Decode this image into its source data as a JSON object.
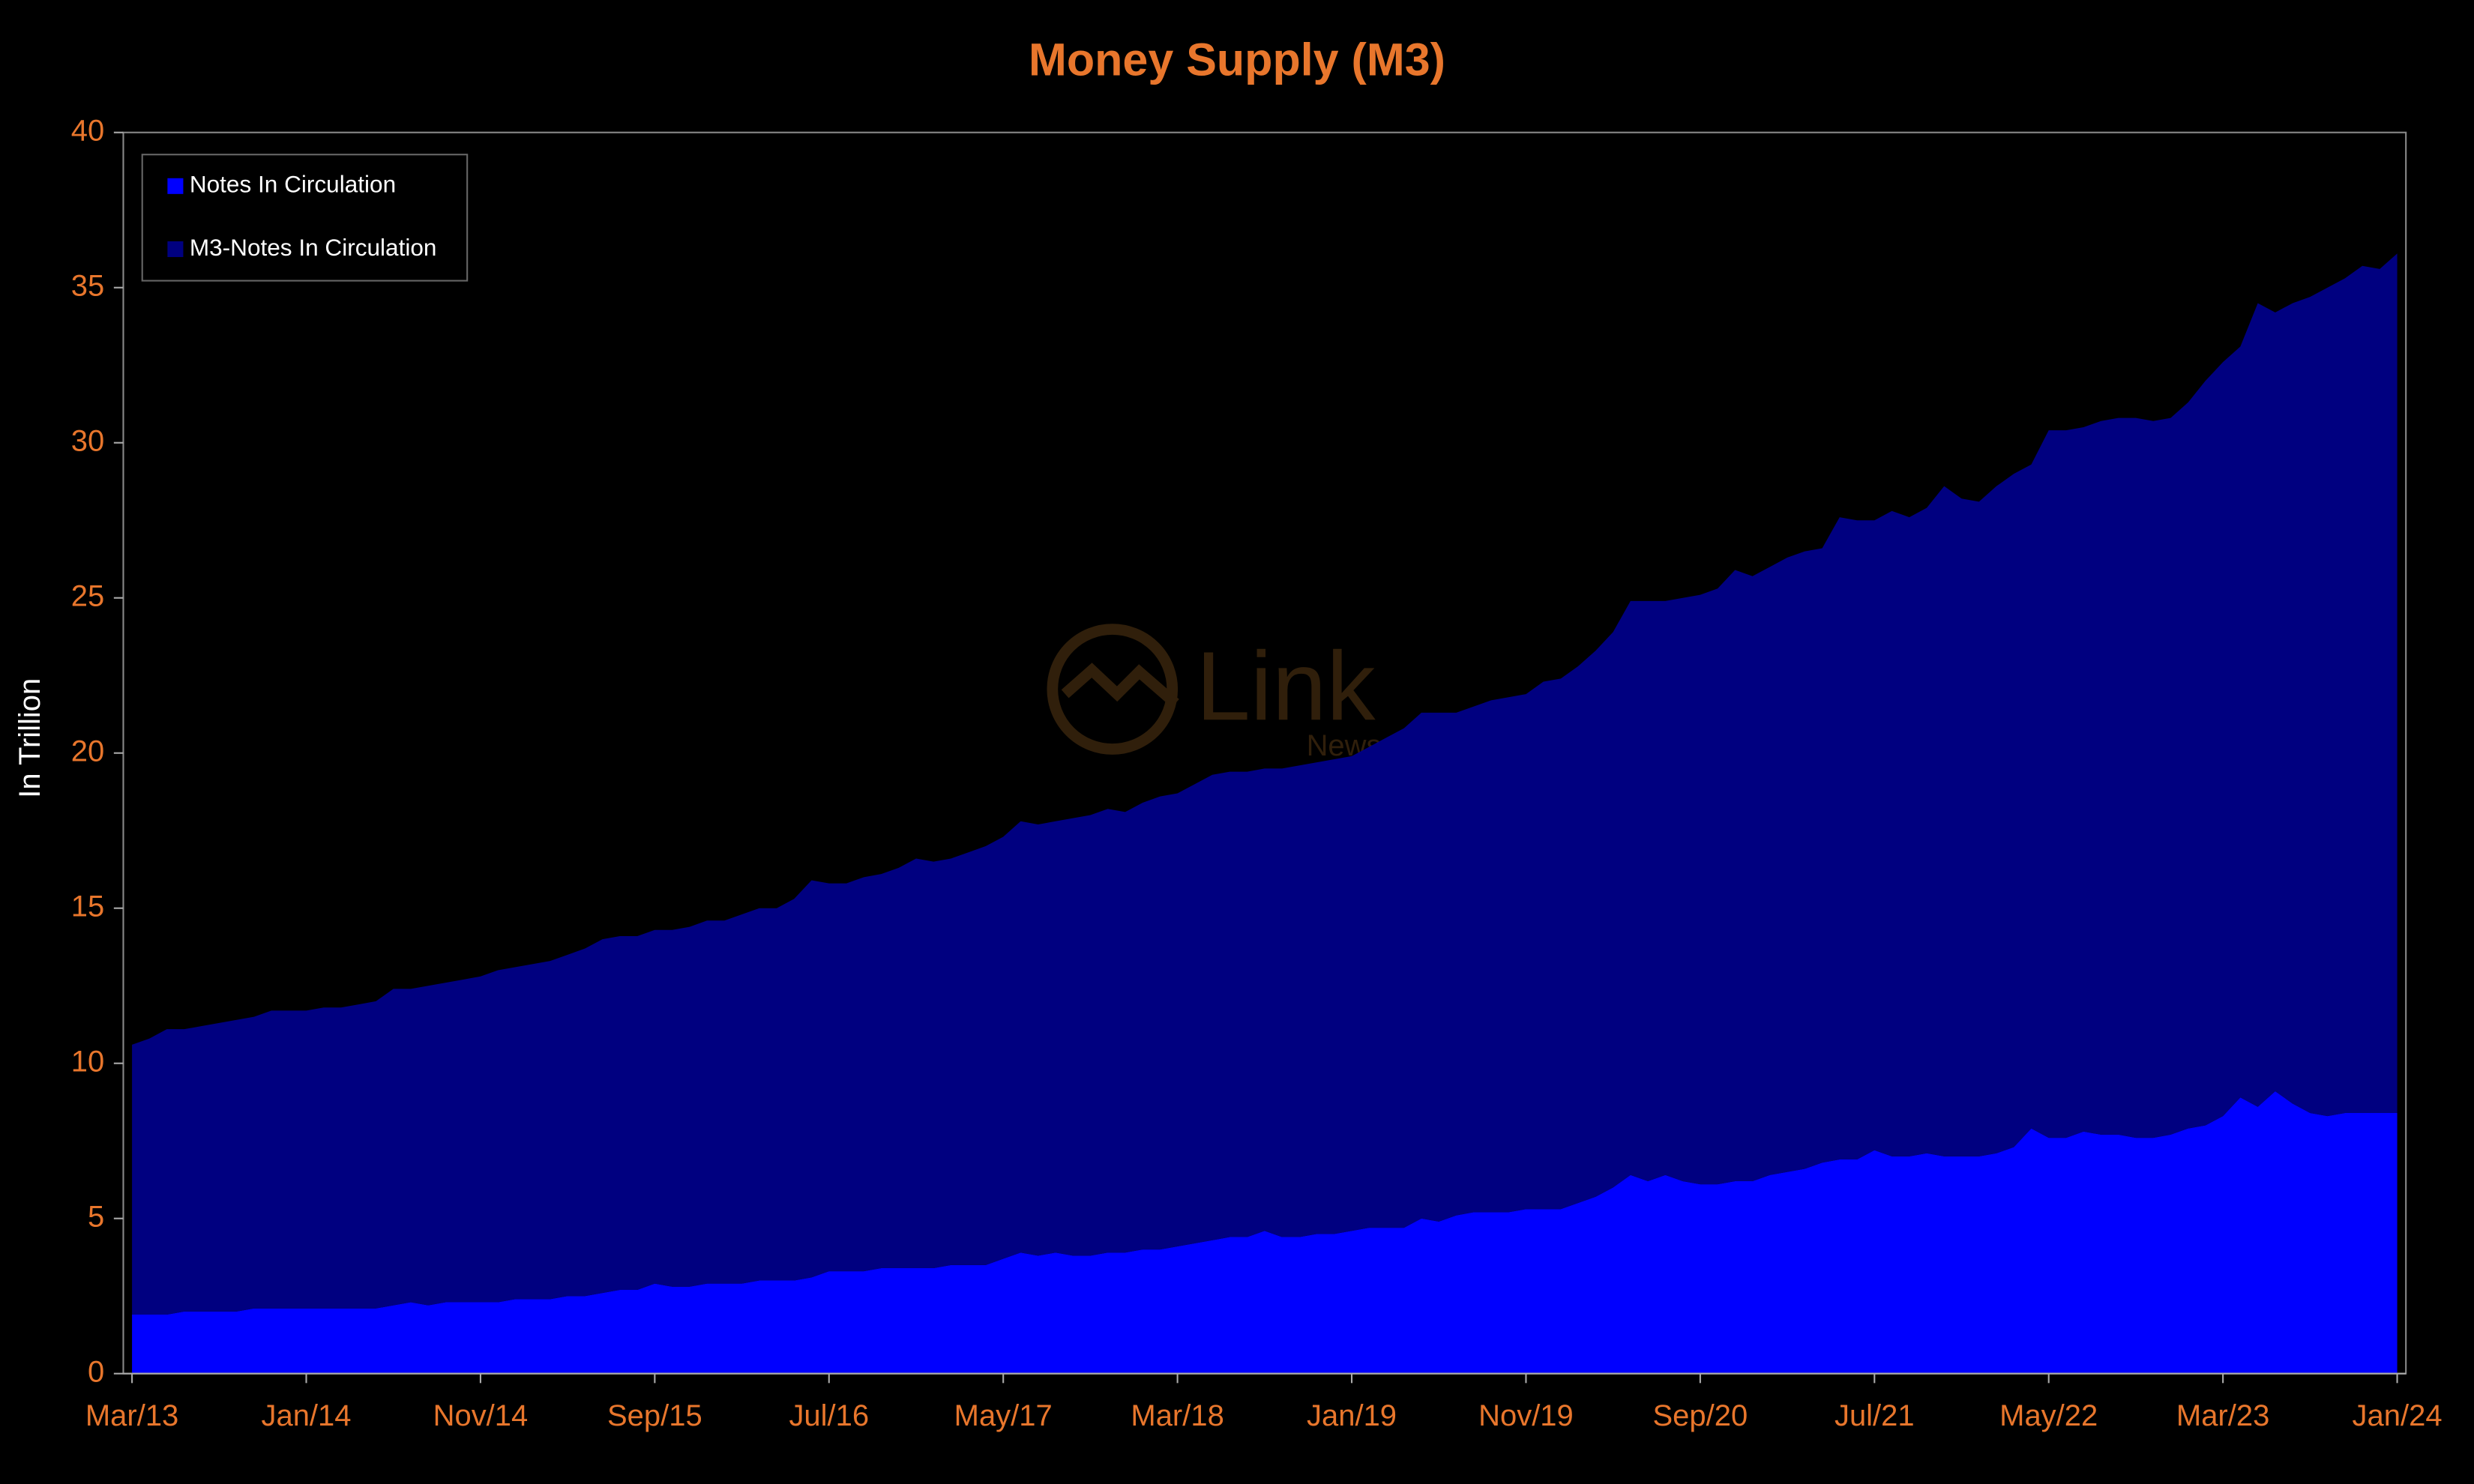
{
  "chart_data": {
    "type": "stacked-area",
    "title": "Money Supply (M3)",
    "y_label": "In Trillion",
    "categories": [
      "Mar/13",
      null,
      null,
      null,
      null,
      null,
      null,
      null,
      null,
      null,
      "Jan/14",
      null,
      null,
      null,
      null,
      null,
      null,
      null,
      null,
      null,
      "Nov/14",
      null,
      null,
      null,
      null,
      null,
      null,
      null,
      null,
      null,
      "Sep/15",
      null,
      null,
      null,
      null,
      null,
      null,
      null,
      null,
      null,
      "Jul/16",
      null,
      null,
      null,
      null,
      null,
      null,
      null,
      null,
      null,
      "May/17",
      null,
      null,
      null,
      null,
      null,
      null,
      null,
      null,
      null,
      "Mar/18",
      null,
      null,
      null,
      null,
      null,
      null,
      null,
      null,
      null,
      "Jan/19",
      null,
      null,
      null,
      null,
      null,
      null,
      null,
      null,
      null,
      "Nov/19",
      null,
      null,
      null,
      null,
      null,
      null,
      null,
      null,
      null,
      "Sep/20",
      null,
      null,
      null,
      null,
      null,
      null,
      null,
      null,
      null,
      "Jul/21",
      null,
      null,
      null,
      null,
      null,
      null,
      null,
      null,
      null,
      "May/22",
      null,
      null,
      null,
      null,
      null,
      null,
      null,
      null,
      null,
      "Mar/23",
      null,
      null,
      null,
      null,
      null,
      null,
      null,
      null,
      null,
      "Jan/24"
    ],
    "series": [
      {
        "name": "Notes In Circulation",
        "color": "#0000ff",
        "values": [
          1.9,
          1.9,
          1.9,
          2.0,
          2.0,
          2.0,
          2.0,
          2.1,
          2.1,
          2.1,
          2.1,
          2.1,
          2.1,
          2.1,
          2.1,
          2.2,
          2.3,
          2.2,
          2.3,
          2.3,
          2.3,
          2.3,
          2.4,
          2.4,
          2.4,
          2.5,
          2.5,
          2.6,
          2.7,
          2.7,
          2.9,
          2.8,
          2.8,
          2.9,
          2.9,
          2.9,
          3.0,
          3.0,
          3.0,
          3.1,
          3.3,
          3.3,
          3.3,
          3.4,
          3.4,
          3.4,
          3.4,
          3.5,
          3.5,
          3.5,
          3.7,
          3.9,
          3.8,
          3.9,
          3.8,
          3.8,
          3.9,
          3.9,
          4.0,
          4.0,
          4.1,
          4.2,
          4.3,
          4.4,
          4.4,
          4.6,
          4.4,
          4.4,
          4.5,
          4.5,
          4.6,
          4.7,
          4.7,
          4.7,
          5.0,
          4.9,
          5.1,
          5.2,
          5.2,
          5.2,
          5.3,
          5.3,
          5.3,
          5.5,
          5.7,
          6.0,
          6.4,
          6.2,
          6.4,
          6.2,
          6.1,
          6.1,
          6.2,
          6.2,
          6.4,
          6.5,
          6.6,
          6.8,
          6.9,
          6.9,
          7.2,
          7.0,
          7.0,
          7.1,
          7.0,
          7.0,
          7.0,
          7.1,
          7.3,
          7.9,
          7.6,
          7.6,
          7.8,
          7.7,
          7.7,
          7.6,
          7.6,
          7.7,
          7.9,
          8.0,
          8.3,
          8.9,
          8.6,
          9.1,
          8.7,
          8.4,
          8.3,
          8.4,
          8.4,
          8.4,
          8.4
        ]
      },
      {
        "name": "M3-Notes In Circulation",
        "color": "#000080",
        "values": [
          8.7,
          8.9,
          9.2,
          9.1,
          9.2,
          9.3,
          9.4,
          9.4,
          9.6,
          9.6,
          9.6,
          9.7,
          9.7,
          9.8,
          9.9,
          10.2,
          10.1,
          10.3,
          10.3,
          10.4,
          10.5,
          10.7,
          10.7,
          10.8,
          10.9,
          11.0,
          11.2,
          11.4,
          11.4,
          11.4,
          11.4,
          11.5,
          11.6,
          11.7,
          11.7,
          11.9,
          12.0,
          12.0,
          12.3,
          12.8,
          12.5,
          12.5,
          12.7,
          12.7,
          12.9,
          13.2,
          13.1,
          13.1,
          13.3,
          13.5,
          13.6,
          13.9,
          13.9,
          13.9,
          14.1,
          14.2,
          14.3,
          14.2,
          14.4,
          14.6,
          14.6,
          14.8,
          15.0,
          15.0,
          15.0,
          14.9,
          15.1,
          15.2,
          15.2,
          15.3,
          15.3,
          15.5,
          15.8,
          16.1,
          16.3,
          16.4,
          16.2,
          16.3,
          16.5,
          16.6,
          16.6,
          17.0,
          17.1,
          17.3,
          17.6,
          17.9,
          18.5,
          18.7,
          18.5,
          18.8,
          19.0,
          19.2,
          19.7,
          19.5,
          19.6,
          19.8,
          19.9,
          19.8,
          20.7,
          20.6,
          20.3,
          20.8,
          20.6,
          20.8,
          21.6,
          21.2,
          21.1,
          21.5,
          21.7,
          21.4,
          22.8,
          22.8,
          22.7,
          23.0,
          23.1,
          23.2,
          23.1,
          23.1,
          23.4,
          24.0,
          24.3,
          24.2,
          25.9,
          25.1,
          25.8,
          26.3,
          26.7,
          26.9,
          27.3,
          27.2,
          27.7
        ]
      }
    ],
    "ylim": [
      0,
      40
    ],
    "yticks": [
      0,
      5,
      10,
      15,
      20,
      25,
      30,
      35,
      40
    ],
    "legend": "top-left"
  }
}
